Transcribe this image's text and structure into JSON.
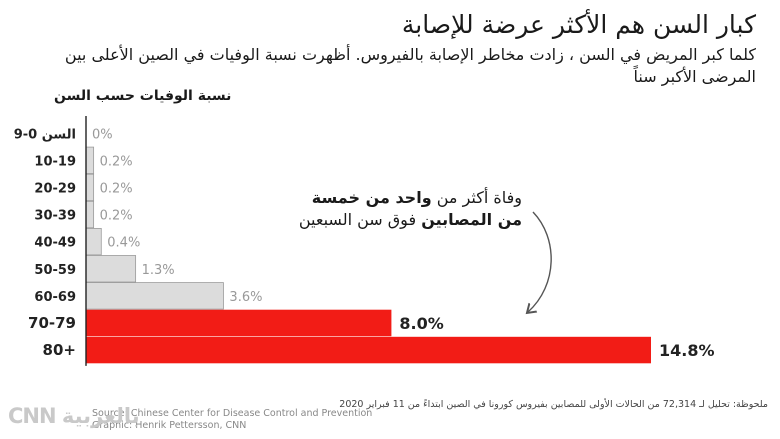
{
  "header": {
    "title": "كبار السن هم الأكثر عرضة للإصابة",
    "subtitle": "كلما كبر المريض في السن ، زادت مخاطر الإصابة بالفيروس. أظهرت نسبة الوفيات في الصين الأعلى بين المرضى الأكبر سناً",
    "chart_heading": "نسبة الوفيات حسب السن"
  },
  "annotation": {
    "part1": "وفاة أكثر من ",
    "bold": "واحد من خمسة من المصابين",
    "part2": " فوق سن السبعين"
  },
  "footer": {
    "note": "ملحوظة: تحليل لـ 72,314 من الحالات الأولى للمصابين بفيروس كورونا في الصين ابتداءً من 11 فبراير 2020",
    "source": "Source: Chinese Center for Disease Control and Prevention",
    "graphic": "Graphic: Henrik Pettersson, CNN",
    "logo": "CNN بالعربية"
  },
  "colors": {
    "highlight": "#f21c16",
    "normal": "#dcdcdc",
    "axis": "#222222",
    "muted_label": "#999999"
  },
  "chart_data": {
    "type": "bar",
    "orientation": "horizontal",
    "title": "كبار السن هم الأكثر عرضة للإصابة",
    "ylabel": "نسبة الوفيات حسب السن",
    "categories": [
      "السن 0-9",
      "10-19",
      "20-29",
      "30-39",
      "40-49",
      "50-59",
      "60-69",
      "70-79",
      "80+"
    ],
    "values": [
      0,
      0.2,
      0.2,
      0.2,
      0.4,
      1.3,
      3.6,
      8.0,
      14.8
    ],
    "value_labels": [
      "0%",
      "0.2%",
      "0.2%",
      "0.2%",
      "0.4%",
      "1.3%",
      "3.6%",
      "8.0%",
      "14.8%"
    ],
    "highlighted": [
      false,
      false,
      false,
      false,
      false,
      false,
      false,
      true,
      true
    ],
    "xlim": [
      0,
      14.8
    ]
  }
}
